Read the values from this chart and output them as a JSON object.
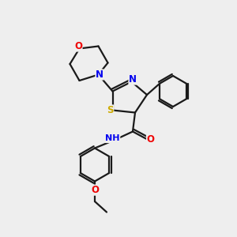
{
  "bg_color": "#eeeeee",
  "bond_color": "#1a1a1a",
  "bond_width": 1.6,
  "atom_colors": {
    "C": "#1a1a1a",
    "N": "#0000ee",
    "O": "#ee0000",
    "S": "#ccaa00",
    "H": "#1a1a1a"
  },
  "font_size": 8.5,
  "lw": 1.6
}
